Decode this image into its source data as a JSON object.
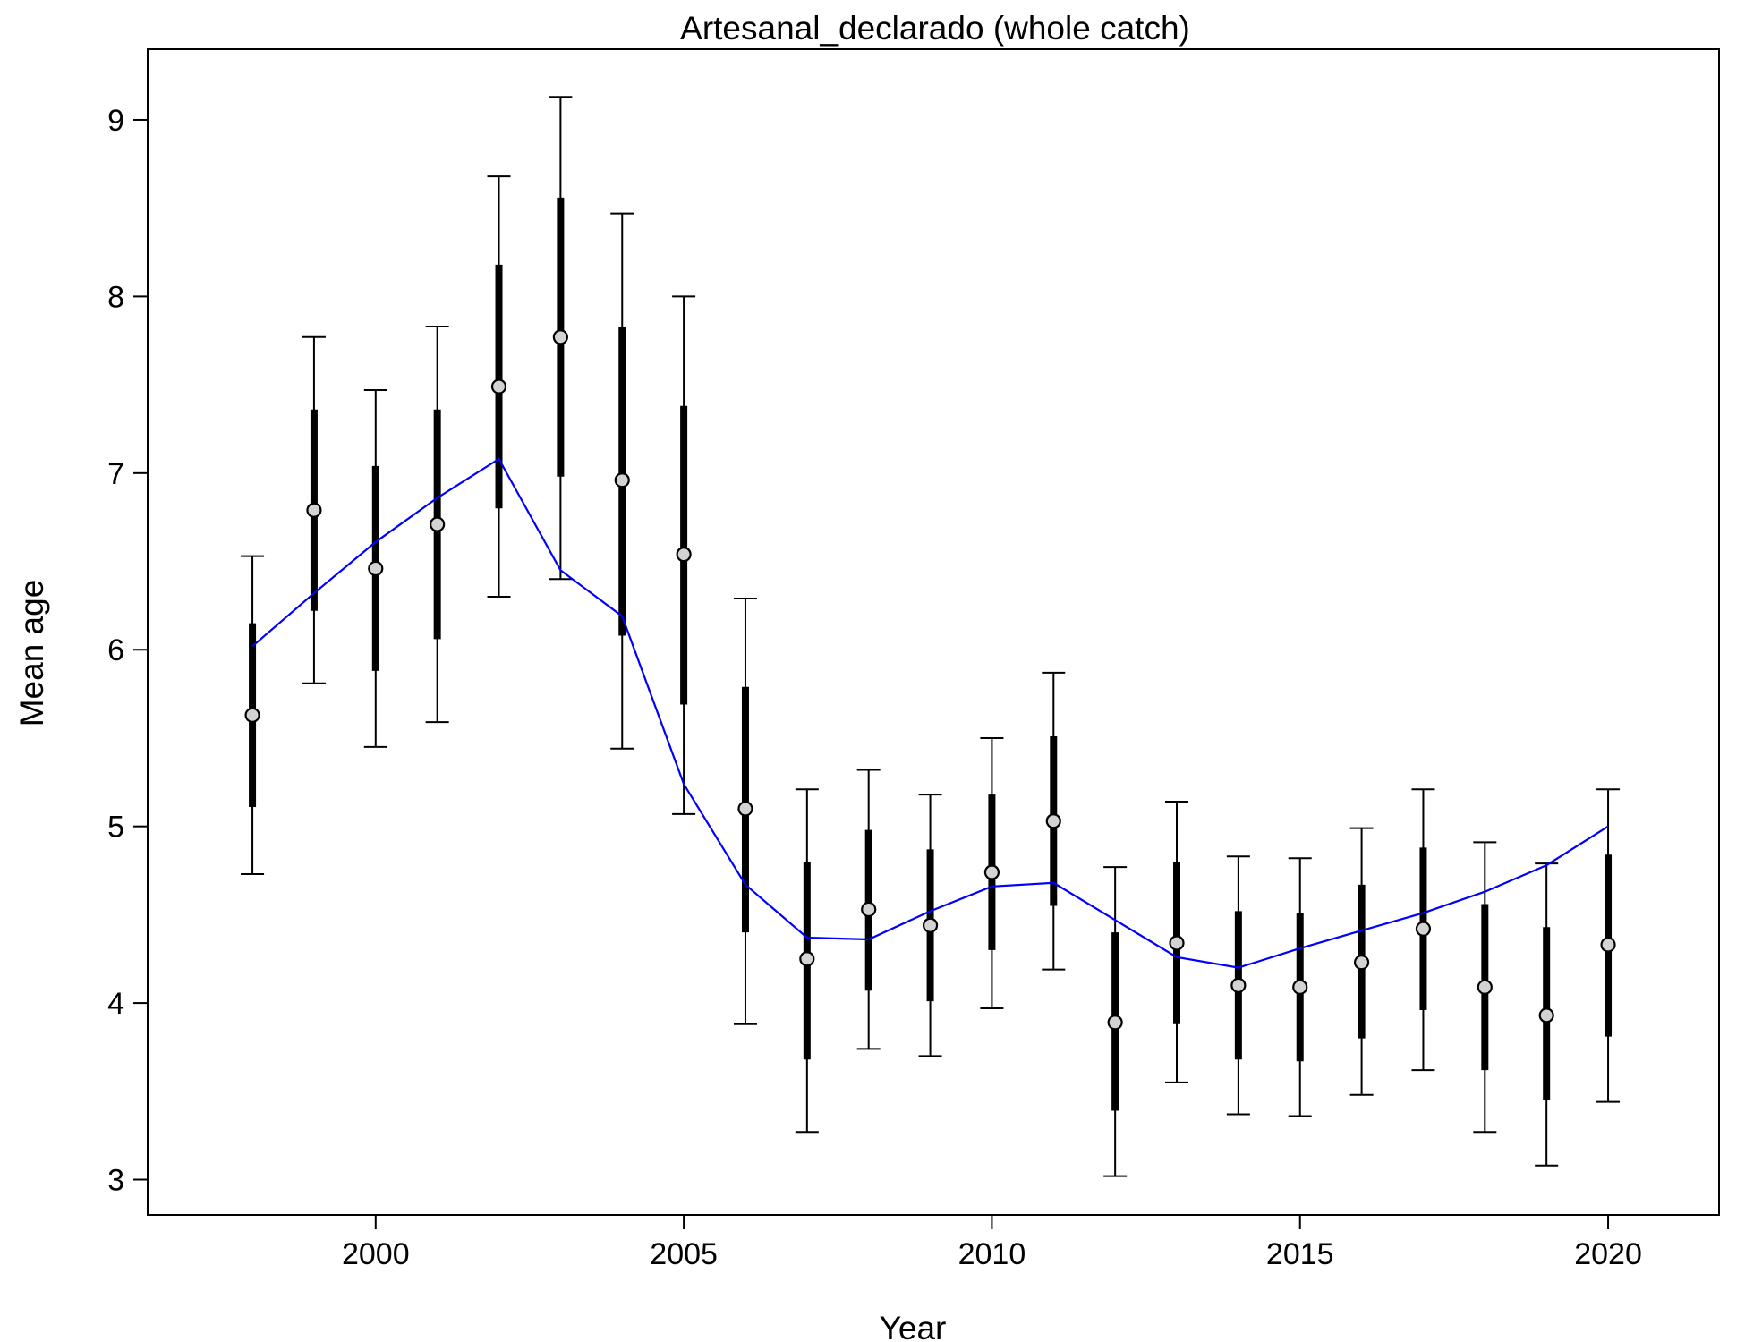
{
  "chart_data": {
    "type": "line",
    "title": "Artesanal_declarado (whole catch)",
    "xlabel": "Year",
    "ylabel": "Mean age",
    "xlim": [
      1996.3,
      2021.8
    ],
    "ylim": [
      2.8,
      9.4
    ],
    "xticks": [
      2000,
      2005,
      2010,
      2015,
      2020
    ],
    "yticks": [
      3,
      4,
      5,
      6,
      7,
      8,
      9
    ],
    "grid": false,
    "legend": "none",
    "colors": {
      "fit_line": "#0000ff",
      "observed_point_fill": "#d3d3d3",
      "interval": "#000000"
    },
    "series": [
      {
        "type": "points_with_intervals",
        "x": [
          1998,
          1999,
          2000,
          2001,
          2002,
          2003,
          2004,
          2005,
          2006,
          2007,
          2008,
          2009,
          2010,
          2011,
          2012,
          2013,
          2014,
          2015,
          2016,
          2017,
          2018,
          2019,
          2020
        ],
        "y": [
          5.63,
          6.79,
          6.46,
          6.71,
          7.49,
          7.77,
          6.96,
          6.54,
          5.1,
          4.25,
          4.53,
          4.44,
          4.74,
          5.03,
          3.89,
          4.34,
          4.1,
          4.09,
          4.23,
          4.42,
          4.09,
          3.93,
          4.33
        ],
        "inner_low": [
          5.11,
          6.22,
          5.88,
          6.06,
          6.8,
          6.98,
          6.08,
          5.69,
          4.4,
          3.68,
          4.07,
          4.01,
          4.3,
          4.55,
          3.39,
          3.88,
          3.68,
          3.67,
          3.8,
          3.96,
          3.62,
          3.45,
          3.81
        ],
        "inner_high": [
          6.15,
          7.36,
          7.04,
          7.36,
          8.18,
          8.56,
          7.83,
          7.38,
          5.79,
          4.8,
          4.98,
          4.87,
          5.18,
          5.51,
          4.4,
          4.8,
          4.52,
          4.51,
          4.67,
          4.88,
          4.56,
          4.43,
          4.84
        ],
        "outer_low": [
          4.73,
          5.81,
          5.45,
          5.59,
          6.3,
          6.4,
          5.44,
          5.07,
          3.88,
          3.27,
          3.74,
          3.7,
          3.97,
          4.19,
          3.02,
          3.55,
          3.37,
          3.36,
          3.48,
          3.62,
          3.27,
          3.08,
          3.44
        ],
        "outer_high": [
          6.53,
          7.77,
          7.47,
          7.83,
          8.68,
          9.13,
          8.47,
          8.0,
          6.29,
          5.21,
          5.32,
          5.18,
          5.5,
          5.87,
          4.77,
          5.14,
          4.83,
          4.82,
          4.99,
          5.21,
          4.91,
          4.79,
          5.21
        ]
      },
      {
        "type": "line",
        "x": [
          1998,
          1999,
          2000,
          2001,
          2002,
          2003,
          2004,
          2005,
          2006,
          2007,
          2008,
          2009,
          2010,
          2011,
          2012,
          2013,
          2014,
          2015,
          2016,
          2017,
          2018,
          2019,
          2020
        ],
        "y": [
          6.02,
          6.32,
          6.61,
          6.86,
          7.08,
          6.45,
          6.19,
          5.24,
          4.67,
          4.37,
          4.36,
          4.52,
          4.66,
          4.68,
          4.47,
          4.26,
          4.2,
          4.31,
          4.41,
          4.51,
          4.63,
          4.78,
          5.0
        ]
      }
    ]
  }
}
